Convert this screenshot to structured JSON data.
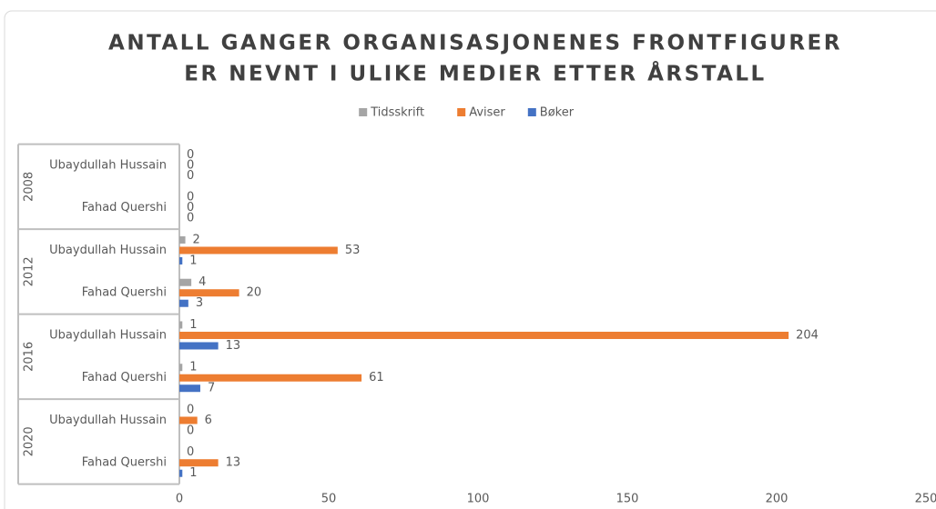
{
  "chart_data": {
    "type": "hbar",
    "title": [
      "ANTALL GANGER ORGANISASJONENES FRONTFIGURER",
      "ER NEVNT I ULIKE MEDIER ETTER ÅRSTALL"
    ],
    "groups": [
      "2008",
      "2012",
      "2016",
      "2020"
    ],
    "categories": [
      "Ubaydullah Hussain",
      "Fahad Quershi",
      "Ubaydullah Hussain",
      "Fahad Quershi",
      "Ubaydullah Hussain",
      "Fahad Quershi",
      "Ubaydullah Hussain",
      "Fahad Quershi"
    ],
    "series": [
      {
        "name": "Tidsskrift",
        "color": "#a5a5a5",
        "values": [
          0,
          0,
          2,
          4,
          1,
          1,
          0,
          0
        ]
      },
      {
        "name": "Aviser",
        "color": "#ed7d31",
        "values": [
          0,
          0,
          53,
          20,
          204,
          61,
          6,
          13
        ]
      },
      {
        "name": "Bøker",
        "color": "#4472c4",
        "values": [
          0,
          0,
          1,
          3,
          13,
          7,
          0,
          1
        ]
      }
    ],
    "xlim": [
      0,
      250
    ],
    "xticks": [
      0,
      50,
      100,
      150,
      200,
      250
    ],
    "legend": "top",
    "data_labels": true
  }
}
